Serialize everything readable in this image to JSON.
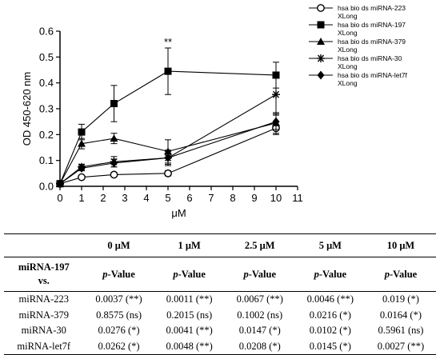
{
  "chart_data": {
    "type": "line",
    "xlabel": "μM",
    "ylabel": "OD 450-620 nm",
    "xlim": [
      0,
      11
    ],
    "ylim": [
      0,
      0.6
    ],
    "xticks": [
      "0",
      "1",
      "2",
      "3",
      "4",
      "5",
      "6",
      "7",
      "8",
      "9",
      "10",
      "11"
    ],
    "yticks": [
      "0.0",
      "0.1",
      "0.2",
      "0.3",
      "0.4",
      "0.5",
      "0.6"
    ],
    "x": [
      0,
      1,
      2.5,
      5,
      10
    ],
    "grid": false,
    "legend_position": "top-right",
    "annotations": [
      {
        "text": "**",
        "x": 5,
        "y": 0.535
      }
    ],
    "series": [
      {
        "name": "hsa bio ds miRNA-223 XLong",
        "marker": "open-circle",
        "values": [
          0.01,
          0.035,
          0.045,
          0.05,
          0.225
        ],
        "errors": [
          0.003,
          0.005,
          0.008,
          0.01,
          0.025
        ]
      },
      {
        "name": "hsa bio ds miRNA-197 XLong",
        "marker": "filled-square",
        "values": [
          0.01,
          0.21,
          0.32,
          0.445,
          0.43
        ],
        "errors": [
          0.003,
          0.03,
          0.07,
          0.09,
          0.05
        ]
      },
      {
        "name": "hsa bio ds miRNA-379 XLong",
        "marker": "filled-triangle",
        "values": [
          0.01,
          0.165,
          0.185,
          0.135,
          0.245
        ],
        "errors": [
          0.003,
          0.02,
          0.02,
          0.045,
          0.04
        ]
      },
      {
        "name": "hsa bio ds miRNA-30 XLong",
        "marker": "star",
        "values": [
          0.01,
          0.075,
          0.095,
          0.11,
          0.355
        ],
        "errors": [
          0.003,
          0.01,
          0.02,
          0.03,
          0.08
        ]
      },
      {
        "name": "hsa bio ds miRNA-let7f XLong",
        "marker": "filled-diamond",
        "values": [
          0.01,
          0.07,
          0.09,
          0.11,
          0.25
        ],
        "errors": [
          0.003,
          0.01,
          0.015,
          0.025,
          0.03
        ]
      }
    ]
  },
  "table": {
    "concentrations": [
      "0 μM",
      "1 μM",
      "2.5 μM",
      "5 μM",
      "10 μM"
    ],
    "corner_line1": "miRNA-197",
    "corner_line2": "vs.",
    "pvalue_label_italic": "p",
    "pvalue_label_rest": "-Value",
    "rows": [
      {
        "name": "miRNA-223",
        "cells": [
          "0.0037 (**)",
          "0.0011 (**)",
          "0.0067 (**)",
          "0.0046 (**)",
          "0.019 (*)"
        ]
      },
      {
        "name": "miRNA-379",
        "cells": [
          "0.8575 (ns)",
          "0.2015 (ns)",
          "0.1002 (ns)",
          "0.0216 (*)",
          "0.0164 (*)"
        ]
      },
      {
        "name": "miRNA-30",
        "cells": [
          "0.0276 (*)",
          "0.0041 (**)",
          "0.0147 (*)",
          "0.0102 (*)",
          "0.5961 (ns)"
        ]
      },
      {
        "name": "miRNA-let7f",
        "cells": [
          "0.0262 (*)",
          "0.0048 (**)",
          "0.0208 (*)",
          "0.0145 (*)",
          "0.0027 (**)"
        ]
      }
    ]
  }
}
